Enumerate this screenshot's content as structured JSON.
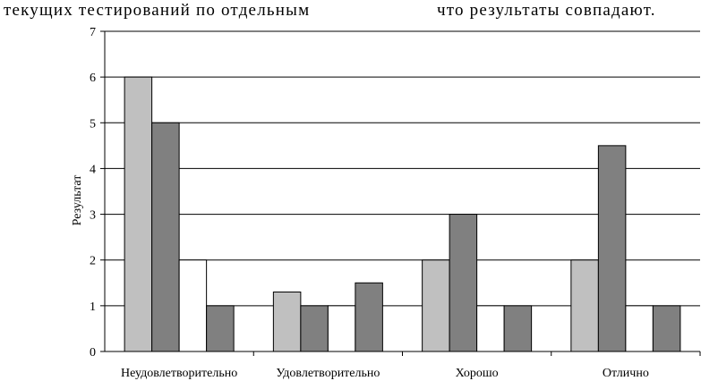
{
  "caption": {
    "left": "текущих тестирований по отдельным",
    "right": "что результаты совпадают."
  },
  "chart_data": {
    "type": "bar",
    "ylabel": "Результат",
    "xlabel": "",
    "ylim": [
      0,
      7
    ],
    "yticks": [
      "0",
      "1",
      "2",
      "3",
      "4",
      "5",
      "6",
      "7"
    ],
    "grid": true,
    "categories": [
      "Неудовлетворительно",
      "Удовлетворительно",
      "Хорошо",
      "Отлично"
    ],
    "series": [
      {
        "color": "#c0c0c0",
        "values": [
          6,
          1.3,
          2,
          2
        ]
      },
      {
        "color": "#808080",
        "values": [
          5,
          1,
          3,
          4.5
        ]
      },
      {
        "color": "#ffffff",
        "values": [
          2,
          1,
          1,
          1
        ]
      },
      {
        "color": "#808080",
        "values": [
          1,
          1.5,
          1,
          1
        ]
      }
    ]
  }
}
